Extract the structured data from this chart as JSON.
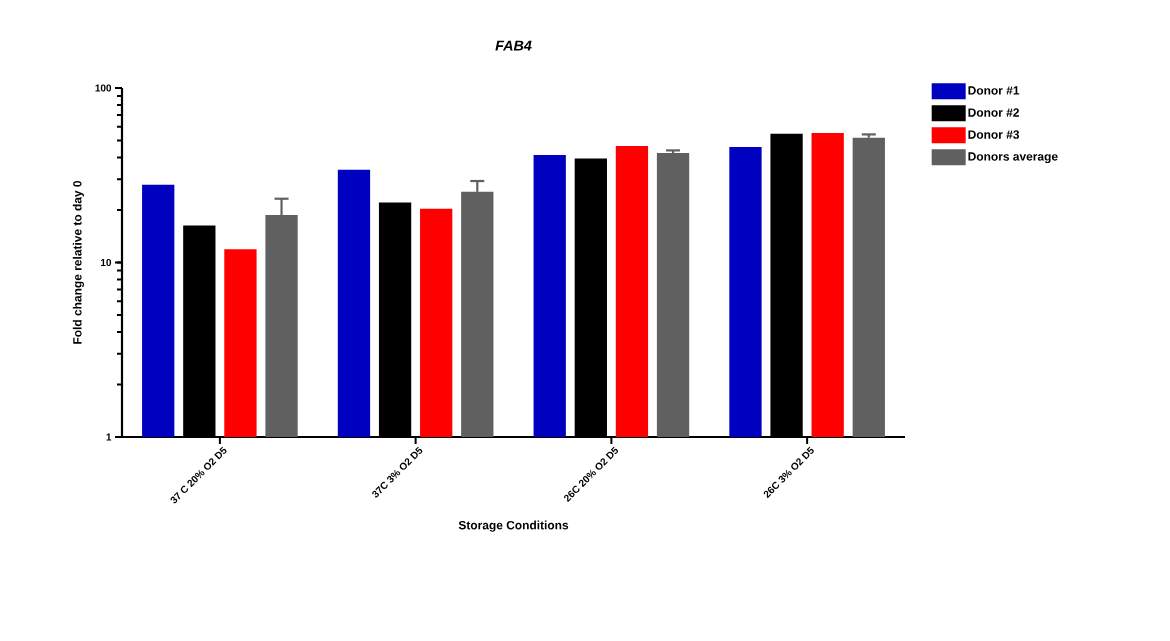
{
  "chart_data": {
    "type": "bar",
    "title": "FAB4",
    "xlabel": "Storage Conditions",
    "ylabel": "Fold change relative to day 0",
    "categories": [
      "37 C 20% O2 D5",
      "37C  3% O2 D5",
      "26C 20% O2 D5",
      "26C 3% O2 D5"
    ],
    "series": [
      {
        "name": "Donor #1",
        "color": "#0000c0",
        "values": [
          27.9,
          34.0,
          41.3,
          45.9
        ]
      },
      {
        "name": "Donor #2",
        "color": "#000000",
        "values": [
          16.3,
          22.1,
          39.5,
          54.7
        ]
      },
      {
        "name": "Donor #3",
        "color": "#ff0000",
        "values": [
          11.9,
          20.3,
          46.5,
          55.2
        ]
      },
      {
        "name": "Donors average",
        "color": "#606060",
        "values": [
          18.7,
          25.4,
          42.4,
          51.9
        ],
        "errors": [
          [
            18.7,
            23.2
          ],
          [
            25.4,
            29.3
          ],
          [
            42.4,
            43.9
          ],
          [
            51.9,
            54.2
          ]
        ]
      }
    ],
    "log": true,
    "ylim": [
      1,
      100
    ],
    "yticks": [
      1,
      10,
      100
    ],
    "legend": "top right"
  }
}
